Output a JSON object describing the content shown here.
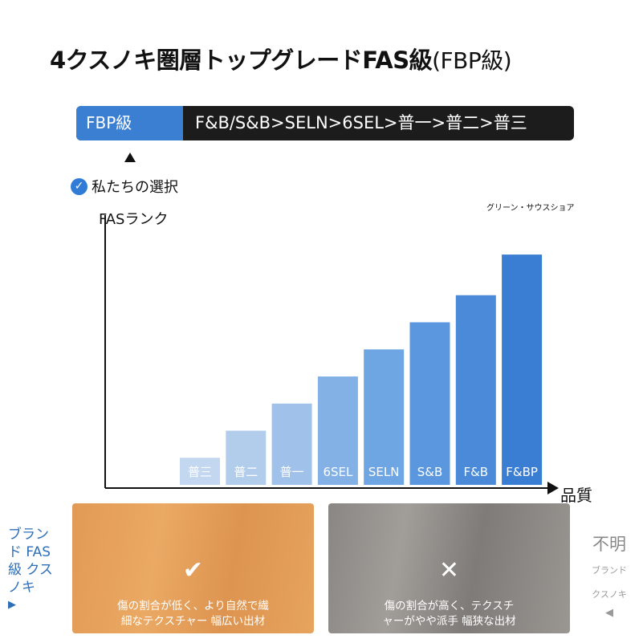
{
  "title": {
    "main": "4クスノキ圏層トップグレードFAS級",
    "paren": "(FBP級)"
  },
  "grade_bar": {
    "tag": "FBP級",
    "order": "F&B/S&B>SELN>6SEL>普一>普二>普三"
  },
  "choice_label": "私たちの選択",
  "chart_data": {
    "type": "bar",
    "categories": [
      "普三",
      "普二",
      "普一",
      "6SEL",
      "SELN",
      "S&B",
      "F&B",
      "F&BP"
    ],
    "values": [
      1,
      2,
      3,
      4,
      5,
      6,
      7,
      8.5
    ],
    "ylim": [
      0,
      9.6
    ],
    "xlabel": "品質",
    "ylabel": "FASランク",
    "annotation": "グリーン・サウスショア",
    "colors": [
      "#c3d8f0",
      "#b2cdec",
      "#a0c1e9",
      "#83b1e6",
      "#6ea5e3",
      "#5b97de",
      "#4a8ad9",
      "#3a7ed3"
    ],
    "grid": false
  },
  "panels": {
    "good": {
      "mark": "✔",
      "desc_line1": "傷の割合が低く、より自然で繊",
      "desc_line2": "細なテクスチャー 幅広い出材"
    },
    "bad": {
      "mark": "✕",
      "desc_line1": "傷の割合が高く、テクスチ",
      "desc_line2": "ャーがやや派手 幅狭な出材"
    }
  },
  "side_left": {
    "line1": "ブラン",
    "line2": "ド FAS",
    "line3": "級 クス",
    "line4": "ノキ",
    "arrow": "▶"
  },
  "side_right": {
    "big": "不明",
    "line1": "ブランド",
    "line2": "クスノキ",
    "arrow": "◀"
  }
}
